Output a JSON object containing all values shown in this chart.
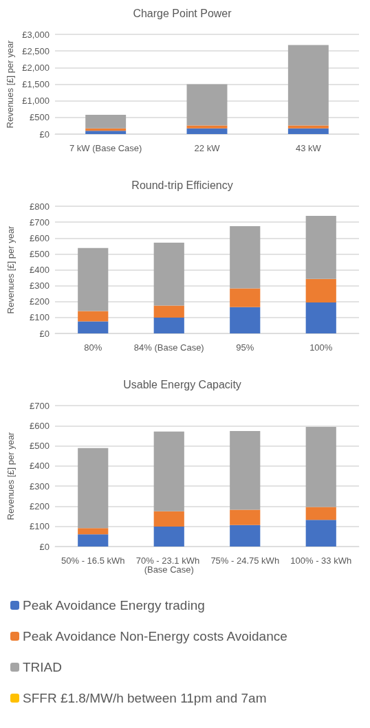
{
  "chart_data": [
    {
      "type": "bar",
      "title": "Charge Point Power",
      "ylabel": "Revenues [£] per year",
      "stacked": true,
      "grid": "y",
      "legend": false,
      "categories": [
        "7 kW (Base Case)",
        "22 kW",
        "43 kW"
      ],
      "ylim": [
        0,
        3000
      ],
      "yticks": [
        {
          "value": 0,
          "label": "£0"
        },
        {
          "value": 500,
          "label": "£500"
        },
        {
          "value": 1000,
          "label": "£1,000"
        },
        {
          "value": 1500,
          "label": "£1,500"
        },
        {
          "value": 2000,
          "label": "£2,000"
        },
        {
          "value": 2500,
          "label": "£2,500"
        },
        {
          "value": 3000,
          "label": "£3,000"
        }
      ],
      "series": [
        {
          "color": "#4472c4",
          "values": [
            100,
            170,
            170
          ]
        },
        {
          "color": "#ed7d31",
          "values": [
            70,
            90,
            90
          ]
        },
        {
          "color": "#a5a5a5",
          "values": [
            410,
            1240,
            2420
          ]
        }
      ]
    },
    {
      "type": "bar",
      "title": "Round-trip Efficiency",
      "ylabel": "Revenues [£] per year",
      "stacked": true,
      "grid": "y",
      "legend": false,
      "categories": [
        "80%",
        "84% (Base Case)",
        "95%",
        "100%"
      ],
      "ylim": [
        0,
        800
      ],
      "yticks": [
        {
          "value": 0,
          "label": "£0"
        },
        {
          "value": 100,
          "label": "£100"
        },
        {
          "value": 200,
          "label": "£200"
        },
        {
          "value": 300,
          "label": "£300"
        },
        {
          "value": 400,
          "label": "£400"
        },
        {
          "value": 500,
          "label": "£500"
        },
        {
          "value": 600,
          "label": "£600"
        },
        {
          "value": 700,
          "label": "£700"
        },
        {
          "value": 800,
          "label": "£800"
        }
      ],
      "series": [
        {
          "color": "#4472c4",
          "values": [
            76,
            100,
            165,
            195
          ]
        },
        {
          "color": "#ed7d31",
          "values": [
            65,
            75,
            118,
            148
          ]
        },
        {
          "color": "#a5a5a5",
          "values": [
            396,
            396,
            392,
            397
          ]
        }
      ]
    },
    {
      "type": "bar",
      "title": "Usable Energy Capacity",
      "ylabel": "Revenues [£] per year",
      "stacked": true,
      "grid": "y",
      "legend": "bottom",
      "categories": [
        "50% - 16.5 kWh",
        "70% - 23.1 kWh (Base Case)",
        "75% - 24.75 kWh",
        "100% - 33 kWh"
      ],
      "ylim": [
        0,
        700
      ],
      "yticks": [
        {
          "value": 0,
          "label": "£0"
        },
        {
          "value": 100,
          "label": "£100"
        },
        {
          "value": 200,
          "label": "£200"
        },
        {
          "value": 300,
          "label": "£300"
        },
        {
          "value": 400,
          "label": "£400"
        },
        {
          "value": 500,
          "label": "£500"
        },
        {
          "value": 600,
          "label": "£600"
        },
        {
          "value": 700,
          "label": "£700"
        }
      ],
      "series": [
        {
          "name": "Peak Avoidance Energy trading",
          "color": "#4472c4",
          "values": [
            61,
            99,
            107,
            132
          ]
        },
        {
          "name": "Peak Avoidance Non-Energy costs Avoidance",
          "color": "#ed7d31",
          "values": [
            30,
            76,
            76,
            64
          ]
        },
        {
          "name": "TRIAD",
          "color": "#a5a5a5",
          "values": [
            398,
            396,
            391,
            398
          ]
        },
        {
          "name": "SFFR £1.8/MW/h between 11pm and 7am",
          "color": "#ffc000",
          "values": [
            0,
            0,
            0,
            0
          ]
        }
      ]
    }
  ]
}
